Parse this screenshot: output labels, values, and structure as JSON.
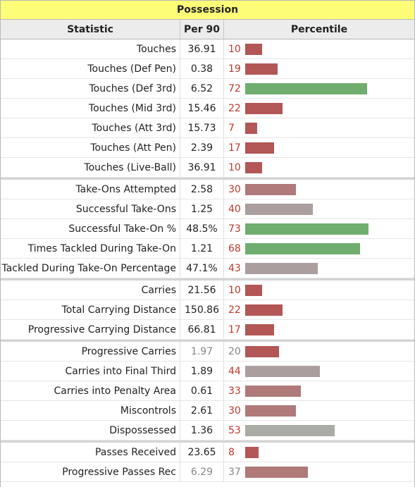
{
  "title": "Possession",
  "headers": {
    "statistic": "Statistic",
    "per90": "Per 90",
    "percentile": "Percentile"
  },
  "colors": {
    "low": "#b35656",
    "mid_low": "#b07a7a",
    "mid": "#ab9e9e",
    "neutral": "#a9aca4",
    "high": "#6fae6f"
  },
  "groups": [
    [
      {
        "stat": "Touches",
        "per90": "36.91",
        "percentile": 10
      },
      {
        "stat": "Touches (Def Pen)",
        "per90": "0.38",
        "percentile": 19
      },
      {
        "stat": "Touches (Def 3rd)",
        "per90": "6.52",
        "percentile": 72
      },
      {
        "stat": "Touches (Mid 3rd)",
        "per90": "15.46",
        "percentile": 22
      },
      {
        "stat": "Touches (Att 3rd)",
        "per90": "15.73",
        "percentile": 7
      },
      {
        "stat": "Touches (Att Pen)",
        "per90": "2.39",
        "percentile": 17
      },
      {
        "stat": "Touches (Live-Ball)",
        "per90": "36.91",
        "percentile": 10
      }
    ],
    [
      {
        "stat": "Take-Ons Attempted",
        "per90": "2.58",
        "percentile": 30
      },
      {
        "stat": "Successful Take-Ons",
        "per90": "1.25",
        "percentile": 40
      },
      {
        "stat": "Successful Take-On %",
        "per90": "48.5%",
        "percentile": 73
      },
      {
        "stat": "Times Tackled During Take-On",
        "per90": "1.21",
        "percentile": 68
      },
      {
        "stat": "Tackled During Take-On Percentage",
        "per90": "47.1%",
        "percentile": 43
      }
    ],
    [
      {
        "stat": "Carries",
        "per90": "21.56",
        "percentile": 10
      },
      {
        "stat": "Total Carrying Distance",
        "per90": "150.86",
        "percentile": 22
      },
      {
        "stat": "Progressive Carrying Distance",
        "per90": "66.81",
        "percentile": 17
      }
    ],
    [
      {
        "stat": "Progressive Carries",
        "per90": "1.97",
        "percentile": 20,
        "muted": true
      },
      {
        "stat": "Carries into Final Third",
        "per90": "1.89",
        "percentile": 44
      },
      {
        "stat": "Carries into Penalty Area",
        "per90": "0.61",
        "percentile": 33
      },
      {
        "stat": "Miscontrols",
        "per90": "2.61",
        "percentile": 30
      },
      {
        "stat": "Dispossessed",
        "per90": "1.36",
        "percentile": 53
      }
    ],
    [
      {
        "stat": "Passes Received",
        "per90": "23.65",
        "percentile": 8
      },
      {
        "stat": "Progressive Passes Rec",
        "per90": "6.29",
        "percentile": 37,
        "muted": true
      }
    ]
  ]
}
